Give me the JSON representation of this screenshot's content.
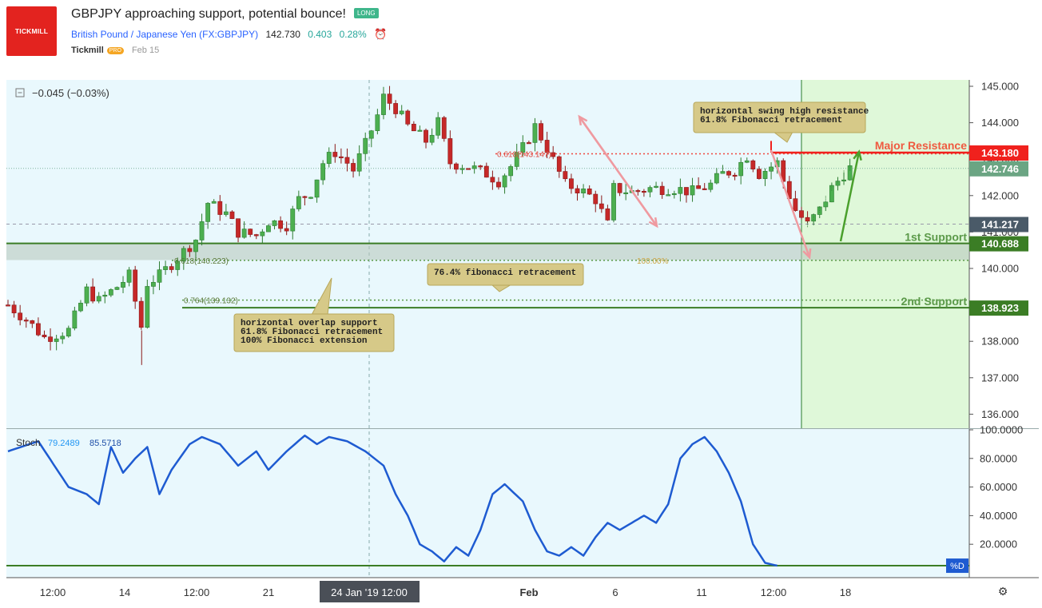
{
  "header": {
    "logo_text": "TICKMILL",
    "title": "GBPJPY approaching support, potential bounce!",
    "badge": "LONG",
    "symbol_name": "British Pound / Japanese Yen",
    "symbol_code": "(FX:GBPJPY)",
    "price": "142.730",
    "change": "0.403",
    "change_pct": "0.28%",
    "author": "Tickmill",
    "author_badge": "PRO",
    "published": "Feb 15"
  },
  "chart_data": {
    "type": "candlestick",
    "legend_value": "−0.045 (−0.03%)",
    "price_axis": {
      "ticks": [
        "145.000",
        "144.000",
        "143.000",
        "142.000",
        "141.000",
        "140.000",
        "139.000",
        "138.000",
        "137.000",
        "136.000"
      ],
      "ylim": [
        135.6,
        145.2
      ]
    },
    "price_labels": [
      {
        "value": 143.18,
        "text": "143.180",
        "color": "#f0211d"
      },
      {
        "value": 142.746,
        "text": "142.746",
        "color": "#6ba583"
      },
      {
        "value": 141.217,
        "text": "141.217",
        "color": "#4a5a68"
      },
      {
        "value": 140.688,
        "text": "140.688",
        "color": "#3b7d25"
      },
      {
        "value": 138.923,
        "text": "138.923",
        "color": "#3b7d25"
      }
    ],
    "time_axis": {
      "labels": [
        "12:00",
        "14",
        "12:00",
        "21",
        "24 Jan '19",
        "12:00",
        "Feb",
        "6",
        "11",
        "12:00",
        "18"
      ],
      "crosshair_label": "24 Jan '19   12:00"
    },
    "levels": {
      "major_resistance": {
        "label": "Major Resistance",
        "value": 143.18
      },
      "first_support": {
        "label": "1st Support",
        "value": 140.688
      },
      "second_support": {
        "label": "2nd Support",
        "value": 138.923
      }
    },
    "fib_labels": {
      "fib_618_upper": "0.618(143.147)",
      "fib_618_lower": "0.618(140.223)",
      "fib_764": "0.764(139.132)",
      "ext_100": "100.00%"
    },
    "callouts": {
      "resistance": [
        "horizontal swing high resistance",
        "61.8% Fibonacci retracement"
      ],
      "fib764": [
        "76.4% fibonacci retracement"
      ],
      "support": [
        "horizontal overlap support",
        "61.8% Fibonacci retracement",
        "100% Fibonacci extension"
      ]
    },
    "close_anchors": [
      [
        0,
        139.0
      ],
      [
        3,
        138.6
      ],
      [
        6,
        138.1
      ],
      [
        10,
        138.3
      ],
      [
        13,
        139.4
      ],
      [
        15,
        139.1
      ],
      [
        18,
        139.5
      ],
      [
        20,
        139.8
      ],
      [
        22,
        138.4
      ],
      [
        23,
        139.6
      ],
      [
        25,
        139.8
      ],
      [
        28,
        140.3
      ],
      [
        31,
        140.8
      ],
      [
        33,
        141.8
      ],
      [
        36,
        141.5
      ],
      [
        38,
        141.0
      ],
      [
        41,
        140.9
      ],
      [
        43,
        141.3
      ],
      [
        46,
        141.2
      ],
      [
        48,
        141.9
      ],
      [
        50,
        142.1
      ],
      [
        52,
        142.9
      ],
      [
        54,
        143.2
      ],
      [
        56,
        142.9
      ],
      [
        57,
        142.7
      ],
      [
        59,
        143.4
      ],
      [
        61,
        144.2
      ],
      [
        62,
        144.7
      ],
      [
        64,
        144.4
      ],
      [
        66,
        143.9
      ],
      [
        69,
        143.5
      ],
      [
        71,
        144.0
      ],
      [
        73,
        142.9
      ],
      [
        76,
        142.8
      ],
      [
        79,
        142.6
      ],
      [
        81,
        142.4
      ],
      [
        83,
        142.8
      ],
      [
        85,
        143.3
      ],
      [
        87,
        143.9
      ],
      [
        89,
        143.3
      ],
      [
        92,
        142.3
      ],
      [
        94,
        142.2
      ],
      [
        97,
        141.9
      ],
      [
        99,
        141.2
      ],
      [
        100,
        142.2
      ],
      [
        103,
        142.1
      ],
      [
        106,
        142.2
      ],
      [
        110,
        142.2
      ],
      [
        113,
        142.1
      ],
      [
        116,
        142.3
      ],
      [
        118,
        142.6
      ],
      [
        120,
        142.7
      ],
      [
        122,
        143.1
      ],
      [
        124,
        142.6
      ],
      [
        127,
        142.9
      ],
      [
        128,
        142.4
      ],
      [
        130,
        141.6
      ],
      [
        132,
        141.2
      ],
      [
        134,
        141.6
      ],
      [
        136,
        142.2
      ],
      [
        138,
        142.6
      ],
      [
        139,
        142.75
      ]
    ],
    "stochastic": {
      "label": "Stoch",
      "k_value": "79.2489",
      "d_value": "85.5718",
      "d_badge": "%D",
      "ticks": [
        "100.0000",
        "80.0000",
        "60.0000",
        "40.0000",
        "20.0000"
      ],
      "ylim": [
        0,
        100
      ],
      "k_anchors": [
        [
          0,
          85
        ],
        [
          5,
          92
        ],
        [
          10,
          60
        ],
        [
          13,
          55
        ],
        [
          15,
          48
        ],
        [
          17,
          88
        ],
        [
          19,
          70
        ],
        [
          21,
          80
        ],
        [
          23,
          88
        ],
        [
          25,
          55
        ],
        [
          27,
          72
        ],
        [
          30,
          90
        ],
        [
          32,
          95
        ],
        [
          35,
          90
        ],
        [
          38,
          75
        ],
        [
          41,
          85
        ],
        [
          43,
          72
        ],
        [
          46,
          85
        ],
        [
          49,
          96
        ],
        [
          51,
          90
        ],
        [
          53,
          95
        ],
        [
          56,
          92
        ],
        [
          59,
          85
        ],
        [
          62,
          75
        ],
        [
          64,
          55
        ],
        [
          66,
          40
        ],
        [
          68,
          20
        ],
        [
          70,
          15
        ],
        [
          72,
          8
        ],
        [
          74,
          18
        ],
        [
          76,
          12
        ],
        [
          78,
          30
        ],
        [
          80,
          55
        ],
        [
          82,
          62
        ],
        [
          85,
          50
        ],
        [
          87,
          30
        ],
        [
          89,
          15
        ],
        [
          91,
          12
        ],
        [
          93,
          18
        ],
        [
          95,
          12
        ],
        [
          97,
          25
        ],
        [
          99,
          35
        ],
        [
          101,
          30
        ],
        [
          103,
          35
        ],
        [
          105,
          40
        ],
        [
          107,
          35
        ],
        [
          109,
          48
        ],
        [
          111,
          80
        ],
        [
          113,
          90
        ],
        [
          115,
          95
        ],
        [
          117,
          85
        ],
        [
          119,
          70
        ],
        [
          121,
          50
        ],
        [
          123,
          20
        ],
        [
          125,
          7
        ],
        [
          127,
          5
        ]
      ]
    },
    "zones": {
      "projection_start_index": 131
    }
  },
  "ui": {
    "settings_icon": "gear-icon",
    "collapse_icon": "minus-square-icon"
  }
}
